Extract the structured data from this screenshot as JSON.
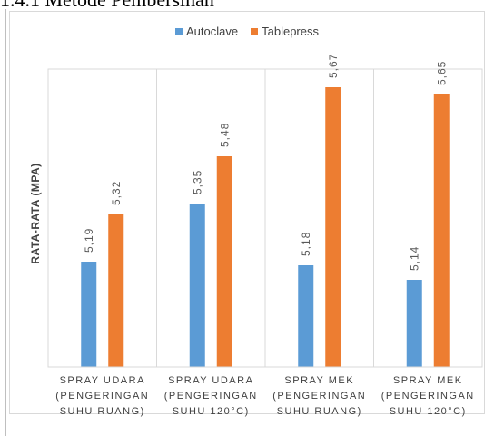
{
  "heading": "1.4.1 Metode Pembersihan",
  "colors": {
    "autoclave": "#5b9bd5",
    "tablepress": "#ed7d31"
  },
  "chart_data": {
    "type": "bar",
    "title": "",
    "xlabel": "",
    "ylabel": "RATA-RATA (MPA)",
    "categories": [
      [
        "SPRAY UDARA",
        "(PENGERINGAN",
        "SUHU RUANG)"
      ],
      [
        "SPRAY UDARA",
        "(PENGERINGAN",
        "SUHU 120°C)"
      ],
      [
        "SPRAY MEK",
        "(PENGERINGAN",
        "SUHU RUANG)"
      ],
      [
        "SPRAY MEK",
        "(PENGERINGAN",
        "SUHU 120°C)"
      ]
    ],
    "series": [
      {
        "name": "Autoclave",
        "values": [
          5.19,
          5.35,
          5.18,
          5.14
        ],
        "labels": [
          "5,19",
          "5,35",
          "5,18",
          "5,14"
        ]
      },
      {
        "name": "Tablepress",
        "values": [
          5.32,
          5.48,
          5.67,
          5.65
        ],
        "labels": [
          "5,32",
          "5,48",
          "5,67",
          "5,65"
        ]
      }
    ],
    "ylim": [
      4.9,
      5.72
    ],
    "grid": false,
    "legend": "top"
  }
}
